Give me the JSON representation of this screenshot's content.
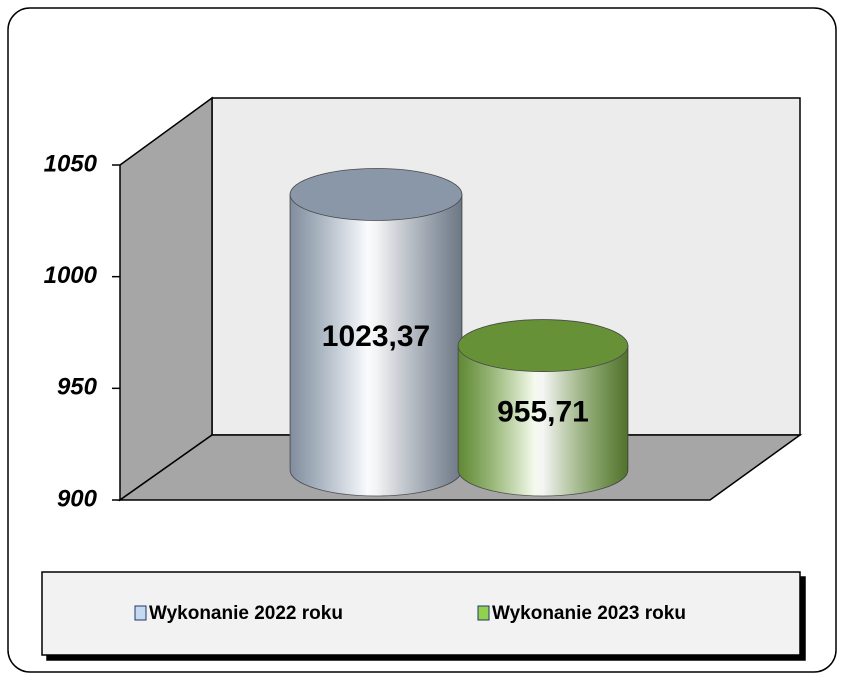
{
  "chart_data": {
    "type": "bar",
    "categories": [
      null
    ],
    "series": [
      {
        "name": "Wykonanie 2022 roku",
        "color": "#c5d9f1",
        "values": [
          1023.37
        ],
        "value_labels": [
          "1023,37"
        ]
      },
      {
        "name": "Wykonanie 2023 roku",
        "color": "#92d050",
        "values": [
          955.71
        ],
        "value_labels": [
          "955,71"
        ]
      }
    ],
    "ylim": [
      900,
      1050
    ],
    "yticks": [
      900,
      950,
      1000,
      1050
    ],
    "grid": false,
    "legend": "bottom"
  }
}
